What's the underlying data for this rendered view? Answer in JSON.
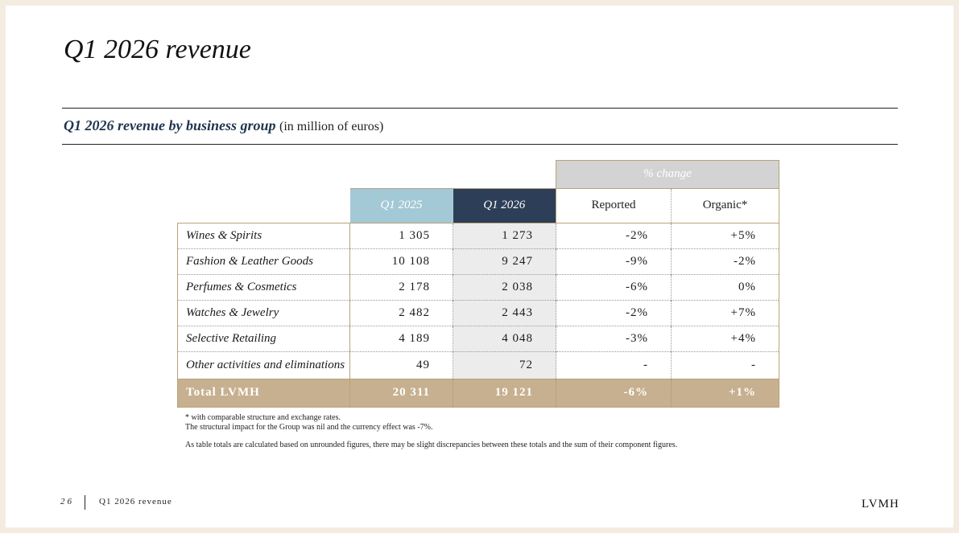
{
  "page_title": "Q1 2026 revenue",
  "section": {
    "title_bold": "Q1 2026 revenue by business group",
    "title_unit": "(in million of euros)"
  },
  "table": {
    "change_header": "% change",
    "columns": [
      "Q1 2025",
      "Q1 2026",
      "Reported",
      "Organic*"
    ],
    "rows": [
      {
        "label": "Wines & Spirits",
        "q1_2025": "1 305",
        "q1_2026": "1 273",
        "reported": "-2%",
        "organic": "+5%"
      },
      {
        "label": "Fashion & Leather Goods",
        "q1_2025": "10 108",
        "q1_2026": "9 247",
        "reported": "-9%",
        "organic": "-2%"
      },
      {
        "label": "Perfumes & Cosmetics",
        "q1_2025": "2 178",
        "q1_2026": "2 038",
        "reported": "-6%",
        "organic": "0%"
      },
      {
        "label": "Watches & Jewelry",
        "q1_2025": "2 482",
        "q1_2026": "2 443",
        "reported": "-2%",
        "organic": "+7%"
      },
      {
        "label": "Selective Retailing",
        "q1_2025": "4 189",
        "q1_2026": "4 048",
        "reported": "-3%",
        "organic": "+4%"
      },
      {
        "label": "Other activities and eliminations",
        "q1_2025": "49",
        "q1_2026": "72",
        "reported": "-",
        "organic": "-"
      }
    ],
    "total": {
      "label": "Total LVMH",
      "q1_2025": "20 311",
      "q1_2026": "19 121",
      "reported": "-6%",
      "organic": "+1%"
    }
  },
  "notes": {
    "line1": "* with comparable structure and exchange rates.",
    "line2": "The structural impact for the Group was nil and the currency effect was -7%.",
    "line3": "As table totals are calculated based on unrounded figures, there may be slight discrepancies between these totals and the sum of their component figures."
  },
  "footer": {
    "page_number": "26",
    "title": "Q1 2026 revenue",
    "brand": "LVMH"
  },
  "colors": {
    "q1_2025_header": "#a3c9d6",
    "q1_2026_header": "#2c3e58",
    "total_row": "#c6b08f",
    "change_header": "#d3d3d3",
    "subtitle": "#1f3450"
  }
}
